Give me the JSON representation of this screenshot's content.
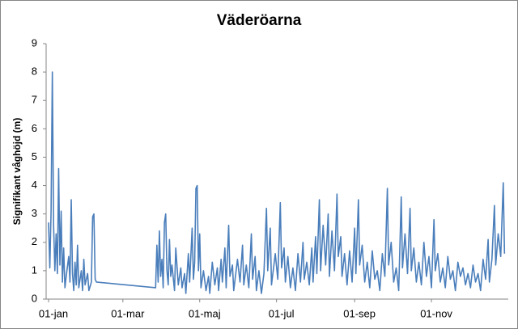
{
  "chart_data": {
    "type": "line",
    "title": "Väderöarna",
    "y_label": "Signifikant våghöjd (m)",
    "x": [
      0,
      1,
      2,
      3,
      4,
      5,
      6,
      7,
      8,
      9,
      10,
      11,
      12,
      13,
      14,
      16,
      17,
      18,
      19,
      20,
      21,
      22,
      23,
      24,
      26,
      27,
      28,
      29,
      31,
      32,
      34,
      35,
      36,
      37,
      38,
      85,
      86,
      87,
      88,
      89,
      90,
      91,
      92,
      93,
      94,
      95,
      96,
      97,
      98,
      100,
      101,
      103,
      105,
      106,
      108,
      109,
      111,
      112,
      114,
      115,
      116,
      117,
      118,
      119,
      120,
      121,
      123,
      125,
      127,
      128,
      130,
      132,
      134,
      135,
      137,
      138,
      140,
      141,
      143,
      144,
      146,
      147,
      150,
      152,
      154,
      155,
      157,
      159,
      161,
      162,
      164,
      165,
      167,
      169,
      171,
      173,
      174,
      176,
      177,
      180,
      182,
      184,
      185,
      187,
      188,
      190,
      192,
      194,
      196,
      198,
      200,
      202,
      203,
      205,
      207,
      209,
      210,
      212,
      213,
      215,
      216,
      218,
      220,
      222,
      223,
      225,
      227,
      229,
      230,
      232,
      233,
      235,
      237,
      239,
      241,
      243,
      244,
      246,
      247,
      249,
      251,
      253,
      255,
      257,
      259,
      261,
      263,
      265,
      267,
      269,
      270,
      272,
      274,
      276,
      278,
      280,
      281,
      283,
      285,
      287,
      288,
      290,
      292,
      294,
      296,
      298,
      300,
      302,
      304,
      306,
      307,
      309,
      311,
      313,
      315,
      317,
      319,
      321,
      323,
      325,
      327,
      329,
      331,
      333,
      335,
      337,
      339,
      341,
      343,
      345,
      347,
      349,
      350,
      352,
      354,
      355,
      357,
      359,
      361,
      362
    ],
    "series": [
      {
        "name": "Signifikant våghöjd",
        "color": "#4a7ebb",
        "values": [
          2.7,
          1.1,
          3.1,
          8.0,
          2.6,
          1.0,
          2.3,
          0.9,
          4.6,
          1.2,
          3.1,
          0.6,
          1.8,
          0.4,
          0.8,
          1.5,
          0.6,
          3.5,
          0.9,
          0.3,
          1.3,
          0.5,
          1.9,
          0.4,
          1.0,
          0.3,
          1.4,
          0.5,
          0.9,
          0.3,
          0.6,
          2.9,
          3.0,
          0.7,
          0.6,
          0.4,
          1.9,
          0.6,
          2.4,
          0.8,
          1.4,
          0.4,
          2.7,
          3.0,
          1.0,
          0.5,
          2.1,
          0.8,
          1.2,
          0.3,
          1.8,
          0.5,
          1.1,
          0.4,
          0.9,
          0.2,
          1.6,
          0.6,
          2.5,
          0.7,
          1.3,
          3.9,
          4.0,
          1.0,
          2.3,
          0.4,
          1.0,
          0.3,
          0.8,
          0.2,
          1.3,
          0.5,
          1.1,
          0.3,
          1.4,
          0.6,
          1.8,
          0.4,
          2.6,
          0.8,
          1.2,
          0.3,
          1.4,
          0.6,
          1.9,
          0.5,
          1.2,
          0.4,
          2.3,
          0.7,
          1.5,
          0.3,
          1.0,
          0.2,
          0.9,
          3.2,
          1.0,
          2.5,
          0.5,
          1.6,
          0.7,
          3.4,
          1.1,
          1.8,
          0.6,
          1.5,
          0.4,
          1.1,
          0.3,
          1.6,
          0.6,
          2.0,
          0.7,
          1.3,
          0.5,
          1.8,
          0.6,
          2.2,
          0.9,
          3.5,
          1.0,
          2.6,
          1.2,
          3.0,
          0.8,
          2.4,
          1.0,
          3.7,
          1.5,
          2.2,
          0.8,
          1.6,
          0.5,
          1.7,
          0.6,
          2.5,
          0.9,
          3.5,
          1.2,
          1.9,
          0.6,
          1.3,
          0.4,
          1.7,
          0.7,
          1.0,
          0.3,
          1.6,
          0.8,
          3.9,
          1.2,
          2.0,
          0.6,
          1.1,
          0.3,
          3.6,
          1.1,
          2.3,
          0.9,
          3.2,
          1.0,
          1.8,
          0.6,
          1.3,
          0.5,
          2.0,
          0.8,
          1.5,
          0.4,
          2.8,
          1.0,
          1.6,
          0.6,
          1.1,
          0.4,
          1.5,
          0.7,
          1.0,
          0.3,
          1.3,
          0.8,
          1.1,
          0.5,
          0.9,
          0.4,
          1.2,
          0.6,
          0.9,
          0.3,
          1.4,
          0.7,
          2.1,
          0.6,
          1.4,
          3.3,
          1.2,
          2.3,
          1.5,
          4.1,
          1.6
        ]
      }
    ],
    "xlim": [
      0,
      365
    ],
    "xticks": [
      {
        "value": 0,
        "label": "01-jan"
      },
      {
        "value": 59,
        "label": "01-mar"
      },
      {
        "value": 120,
        "label": "01-maj"
      },
      {
        "value": 181,
        "label": "01-jul"
      },
      {
        "value": 243,
        "label": "01-sep"
      },
      {
        "value": 304,
        "label": "01-nov"
      }
    ],
    "ylim": [
      0,
      9
    ],
    "yticks": [
      0,
      1,
      2,
      3,
      4,
      5,
      6,
      7,
      8,
      9
    ],
    "grid": false
  }
}
